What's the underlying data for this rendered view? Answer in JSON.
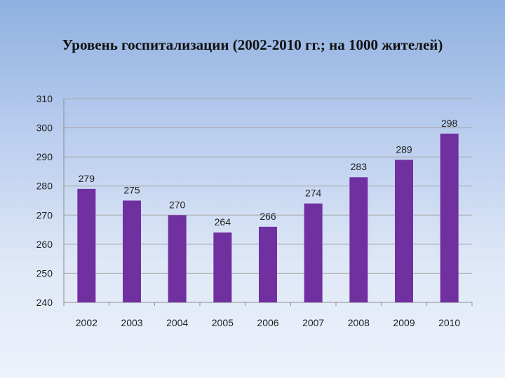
{
  "slide": {
    "title": "Уровень госпитализации (2002-2010 гг.; на 1000 жителей)"
  },
  "chart_data": {
    "type": "bar",
    "title": "Уровень госпитализации (2002-2010 гг.; на 1000 жителей)",
    "categories": [
      "2002",
      "2003",
      "2004",
      "2005",
      "2006",
      "2007",
      "2008",
      "2009",
      "2010"
    ],
    "values": [
      279,
      275,
      270,
      264,
      266,
      274,
      283,
      289,
      298
    ],
    "data_labels": [
      "279",
      "275",
      "270",
      "264",
      "266",
      "274",
      "283",
      "289",
      "298"
    ],
    "ylim": [
      240,
      310
    ],
    "yticks": [
      240,
      250,
      260,
      270,
      280,
      290,
      300,
      310
    ],
    "xlabel": "",
    "ylabel": "",
    "grid": true,
    "legend": "none",
    "bar_color": "#7030a0"
  }
}
